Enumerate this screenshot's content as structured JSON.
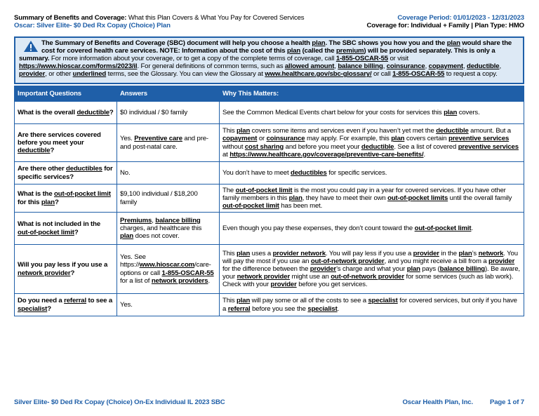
{
  "header": {
    "left_line1": [
      {
        "b": "Summary of Benefits and Coverage:"
      },
      " What this Plan Covers & What You Pay for Covered Services"
    ],
    "plan_name": "Oscar: Silver Elite- $0 Ded Rx Copay (Choice) Plan",
    "coverage_period": "Coverage Period: 01/01/2023 - 12/31/2023",
    "coverage_for": "Coverage for: Individual + Family | Plan Type: HMO"
  },
  "notice": [
    {
      "b": "The Summary of Benefits and Coverage (SBC) document will help you choose a health "
    },
    {
      "bu": "plan"
    },
    {
      "b": ". The SBC shows you how you and the "
    },
    {
      "bu": "plan"
    },
    {
      "b": " would share the cost for covered health care services. NOTE: Information about the cost of this "
    },
    {
      "bu": "plan"
    },
    {
      "b": " (called the "
    },
    {
      "bu": "premium"
    },
    {
      "b": ") will be provided separately. This is only a summary."
    },
    " For more information about your coverage, or to get a copy of the complete terms of coverage, call ",
    {
      "bu": "1-855-OSCAR-55"
    },
    " or visit ",
    {
      "bu": "https://www.hioscar.com/forms/2023/il"
    },
    ". For general definitions of common terms, such as ",
    {
      "bu": "allowed amount"
    },
    ", ",
    {
      "bu": "balance billing"
    },
    ", ",
    {
      "bu": "coinsurance"
    },
    ", ",
    {
      "bu": "copayment"
    },
    ", ",
    {
      "bu": "deductible"
    },
    ", ",
    {
      "bu": "provider"
    },
    ", or other ",
    {
      "bu": "underlined"
    },
    " terms, see the Glossary. You can view the Glossary at ",
    {
      "bu": "www.healthcare.gov/sbc-glossary/"
    },
    " or call ",
    {
      "bu": "1-855-OSCAR-55"
    },
    " to request a copy."
  ],
  "table": {
    "headers": [
      "Important Questions",
      "Answers",
      "Why This Matters:"
    ],
    "rows": [
      [
        [
          {
            "b": "What is the overall "
          },
          {
            "bu": "deductible"
          },
          {
            "b": "?"
          }
        ],
        [
          "$0 individual / $0 family"
        ],
        [
          "See the Common Medical Events chart below for your costs for services this ",
          {
            "bu": "plan"
          },
          " covers."
        ]
      ],
      [
        [
          {
            "b": "Are there services covered before you meet your "
          },
          {
            "bu": "deductible"
          },
          {
            "b": "?"
          }
        ],
        [
          "Yes. ",
          {
            "bu": "Preventive care"
          },
          " and pre- and post-natal care."
        ],
        [
          "This ",
          {
            "bu": "plan"
          },
          " covers some items and services even if you haven’t yet met the ",
          {
            "bu": "deductible"
          },
          " amount. But a ",
          {
            "bu": "copayment"
          },
          " or ",
          {
            "bu": "coinsurance"
          },
          " may apply. For example, this ",
          {
            "bu": "plan"
          },
          " covers certain ",
          {
            "bu": "preventive services"
          },
          " without ",
          {
            "bu": "cost sharing"
          },
          " and before you meet your ",
          {
            "bu": "deductible"
          },
          ". See a list of covered ",
          {
            "bu": "preventive services"
          },
          " at ",
          {
            "bu": "https://www.healthcare.gov/coverage/preventive-care-benefits/"
          },
          "."
        ]
      ],
      [
        [
          {
            "b": "Are there other "
          },
          {
            "bu": "deductibles"
          },
          {
            "b": " for specific services?"
          }
        ],
        [
          "No."
        ],
        [
          "You don’t have to meet ",
          {
            "bu": "deductibles"
          },
          " for specific services."
        ]
      ],
      [
        [
          {
            "b": "What is the "
          },
          {
            "bu": "out-of-pocket limit"
          },
          {
            "b": " for this "
          },
          {
            "bu": "plan"
          },
          {
            "b": "?"
          }
        ],
        [
          "$9,100 individual / $18,200 family"
        ],
        [
          "The ",
          {
            "bu": "out-of-pocket limit"
          },
          " is the most you could pay in a year for covered services. If you have other family members in this ",
          {
            "bu": "plan"
          },
          ", they have to meet their own ",
          {
            "bu": "out-of-pocket limits"
          },
          " until the overall family ",
          {
            "bu": "out-of-pocket limit"
          },
          " has been met."
        ]
      ],
      [
        [
          {
            "b": "What is not included in the "
          },
          {
            "bu": "out-of-pocket limit"
          },
          {
            "b": "?"
          }
        ],
        [
          {
            "bu": "Premiums"
          },
          ", ",
          {
            "bu": "balance billing"
          },
          " charges, and healthcare this ",
          {
            "bu": "plan"
          },
          " does not cover."
        ],
        [
          "Even though you pay these expenses, they don’t count toward the ",
          {
            "bu": "out-of-pocket limit"
          },
          "."
        ]
      ],
      [
        [
          {
            "b": "Will you pay less if you use a "
          },
          {
            "bu": "network provider"
          },
          {
            "b": "?"
          }
        ],
        [
          "Yes. See https://",
          {
            "bu": "www.hioscar.com"
          },
          "/care-options or call ",
          {
            "bu": "1-855-OSCAR-55"
          },
          " for a list of ",
          {
            "bu": "network providers"
          },
          "."
        ],
        [
          "This ",
          {
            "bu": "plan"
          },
          " uses a ",
          {
            "bu": "provider network"
          },
          ". You will pay less if you use a ",
          {
            "bu": "provider"
          },
          " in the ",
          {
            "bu": "plan"
          },
          "’s ",
          {
            "bu": "network"
          },
          ". You will pay the most if you use an ",
          {
            "bu": "out-of-network provider"
          },
          ", and you might receive a bill from a ",
          {
            "bu": "provider"
          },
          " for the difference between the ",
          {
            "bu": "provider"
          },
          "’s charge and what your ",
          {
            "bu": "plan"
          },
          " pays (",
          {
            "bu": "balance billing"
          },
          "). Be aware, your ",
          {
            "bu": "network provider"
          },
          " might use an ",
          {
            "bu": "out-of-network provider"
          },
          " for some services (such as lab work). Check with your ",
          {
            "bu": "provider"
          },
          " before you get services."
        ]
      ],
      [
        [
          {
            "b": "Do you need a "
          },
          {
            "bu": "referral"
          },
          {
            "b": " to see a "
          },
          {
            "bu": "specialist"
          },
          {
            "b": "?"
          }
        ],
        [
          "Yes."
        ],
        [
          "This ",
          {
            "bu": "plan"
          },
          " will pay some or all of the costs to see a ",
          {
            "bu": "specialist"
          },
          " for covered services, but only if you have a ",
          {
            "bu": "referral"
          },
          " before you see the ",
          {
            "bu": "specialist"
          },
          "."
        ]
      ]
    ]
  },
  "footer": {
    "doc_name": "Silver Elite- $0 Ded Rx Copay (Choice) On-Ex Individual IL 2023 SBC",
    "company": "Oscar Health Plan, Inc.",
    "page": "Page 1 of 7"
  }
}
